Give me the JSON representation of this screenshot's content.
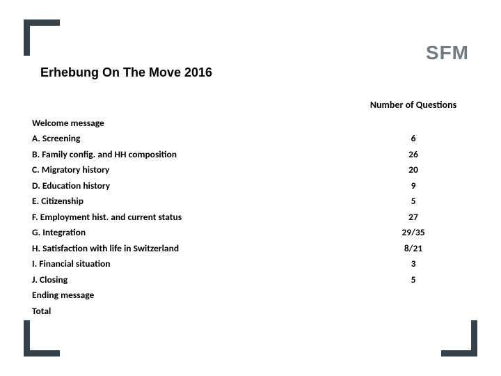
{
  "logo": "SFM",
  "title": "Erhebung On The Move 2016",
  "header": {
    "label": "",
    "count": "Number of Questions"
  },
  "rows": [
    {
      "label": "Welcome message",
      "count": "",
      "section": true
    },
    {
      "label": "A. Screening",
      "count": "6",
      "section": true
    },
    {
      "label": "B. Family config. and HH composition",
      "count": "26",
      "section": true
    },
    {
      "label": "C. Migratory history",
      "count": "20",
      "section": true
    },
    {
      "label": "D. Education history",
      "count": "9",
      "section": true
    },
    {
      "label": "E. Citizenship",
      "count": "5",
      "section": true
    },
    {
      "label": "F. Employment hist. and current status",
      "count": "27",
      "section": true
    },
    {
      "label": "G. Integration",
      "count": "29/35",
      "section": true
    },
    {
      "label": "H. Satisfaction with life in Switzerland",
      "count": "8/21",
      "section": true
    },
    {
      "label": "I. Financial situation",
      "count": "3",
      "section": true
    },
    {
      "label": "J. Closing",
      "count": "5",
      "section": true
    },
    {
      "label": "Ending message",
      "count": "",
      "section": true
    },
    {
      "label": "Total",
      "count": "",
      "section": true
    }
  ],
  "colors": {
    "bracket": "#36424b",
    "logo": "#707a82",
    "text": "#000000",
    "background": "#ffffff"
  },
  "typography": {
    "title_fontsize": 18,
    "title_weight": 700,
    "header_fontsize": 14,
    "row_fontsize": 13.5,
    "logo_fontsize": 28
  }
}
